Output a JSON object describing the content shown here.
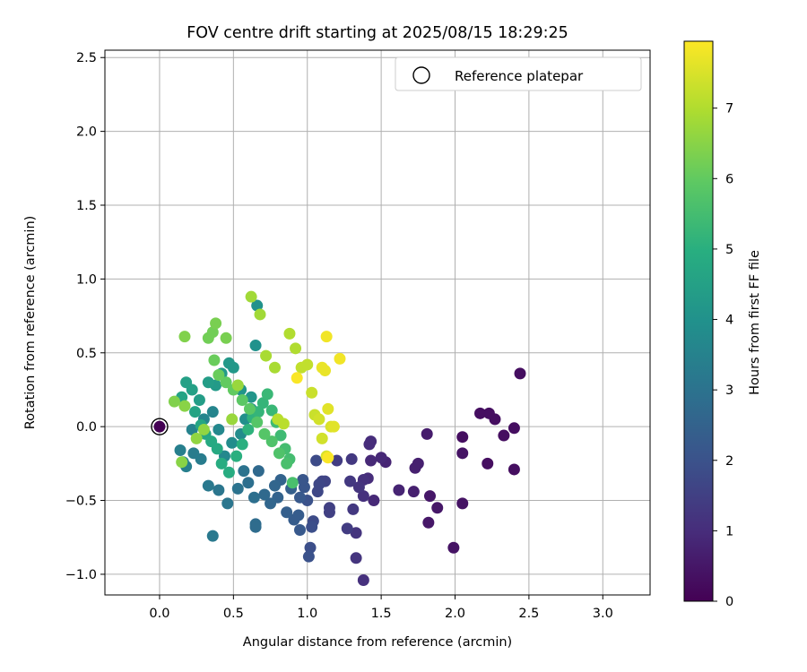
{
  "chart_data": {
    "type": "scatter",
    "title": "FOV centre drift starting at 2025/08/15 18:29:25",
    "xlabel": "Angular distance from reference (arcmin)",
    "ylabel": "Rotation from reference (arcmin)",
    "xlim": [
      -0.37,
      3.32
    ],
    "ylim": [
      -1.14,
      2.55
    ],
    "x_ticks": [
      0.0,
      0.5,
      1.0,
      1.5,
      2.0,
      2.5,
      3.0
    ],
    "x_tick_labels": [
      "0.0",
      "0.5",
      "1.0",
      "1.5",
      "2.0",
      "2.5",
      "3.0"
    ],
    "y_ticks": [
      -1.0,
      -0.5,
      0.0,
      0.5,
      1.0,
      1.5,
      2.0,
      2.5
    ],
    "y_tick_labels": [
      "−1.0",
      "−0.5",
      "0.0",
      "0.5",
      "1.0",
      "1.5",
      "2.0",
      "2.5"
    ],
    "grid": true,
    "legend": {
      "placement": "top-right",
      "entries": [
        "Reference platepar"
      ]
    },
    "colormap": "viridis",
    "colorbar": {
      "label": "Hours from first FF file",
      "range": [
        0,
        7.95
      ],
      "ticks": [
        0,
        1,
        2,
        3,
        4,
        5,
        6,
        7
      ],
      "tick_labels": [
        "0",
        "1",
        "2",
        "3",
        "4",
        "5",
        "6",
        "7"
      ]
    },
    "reference_point": {
      "x": 0.0,
      "y": 0.0,
      "hours": 0.0
    },
    "series": [
      {
        "points": [
          [
            2.44,
            0.36,
            0.3
          ],
          [
            2.4,
            -0.01,
            0.3
          ],
          [
            2.4,
            -0.29,
            0.3
          ],
          [
            2.33,
            -0.06,
            0.3
          ],
          [
            2.27,
            0.05,
            0.3
          ],
          [
            2.23,
            0.09,
            0.3
          ],
          [
            2.17,
            0.09,
            0.3
          ],
          [
            2.22,
            -0.25,
            0.3
          ],
          [
            2.05,
            -0.07,
            0.3
          ],
          [
            2.05,
            -0.18,
            0.4
          ],
          [
            2.05,
            -0.52,
            0.4
          ],
          [
            1.99,
            -0.82,
            0.4
          ],
          [
            1.88,
            -0.55,
            0.5
          ],
          [
            1.83,
            -0.47,
            0.5
          ],
          [
            1.82,
            -0.65,
            0.5
          ],
          [
            1.81,
            -0.05,
            0.6
          ],
          [
            1.75,
            -0.25,
            0.7
          ],
          [
            1.73,
            -0.28,
            0.7
          ],
          [
            1.72,
            -0.44,
            0.7
          ],
          [
            1.62,
            -0.43,
            0.8
          ],
          [
            1.53,
            -0.24,
            0.8
          ],
          [
            1.5,
            -0.21,
            0.9
          ],
          [
            1.45,
            -0.5,
            0.9
          ],
          [
            1.43,
            -0.23,
            0.9
          ],
          [
            1.43,
            -0.1,
            1.0
          ],
          [
            1.42,
            -0.12,
            1.0
          ],
          [
            1.41,
            -0.35,
            1.0
          ],
          [
            1.38,
            -0.36,
            1.1
          ],
          [
            1.38,
            -0.47,
            1.1
          ],
          [
            1.38,
            -1.04,
            1.1
          ],
          [
            1.35,
            -0.41,
            1.2
          ],
          [
            1.33,
            -0.72,
            1.2
          ],
          [
            1.33,
            -0.89,
            1.2
          ],
          [
            1.31,
            -0.56,
            1.3
          ],
          [
            1.3,
            -0.22,
            1.3
          ],
          [
            1.29,
            -0.37,
            1.3
          ],
          [
            1.27,
            -0.69,
            1.4
          ],
          [
            1.2,
            -0.23,
            1.4
          ],
          [
            1.15,
            -0.55,
            1.5
          ],
          [
            1.15,
            -0.58,
            1.5
          ],
          [
            1.12,
            -0.37,
            1.6
          ],
          [
            1.1,
            -0.37,
            1.6
          ],
          [
            1.08,
            -0.39,
            1.7
          ],
          [
            1.07,
            -0.44,
            1.7
          ],
          [
            1.06,
            -0.23,
            1.8
          ],
          [
            1.04,
            -0.64,
            1.8
          ],
          [
            1.03,
            -0.68,
            1.9
          ],
          [
            1.02,
            -0.82,
            1.9
          ],
          [
            1.01,
            -0.88,
            2.0
          ],
          [
            1.0,
            -0.5,
            2.0
          ],
          [
            0.98,
            -0.41,
            2.1
          ],
          [
            0.97,
            -0.36,
            2.1
          ],
          [
            0.95,
            -0.7,
            2.2
          ],
          [
            0.95,
            -0.48,
            2.2
          ],
          [
            0.94,
            -0.6,
            2.3
          ],
          [
            0.91,
            -0.63,
            2.3
          ],
          [
            0.89,
            -0.42,
            2.4
          ],
          [
            0.86,
            -0.58,
            2.4
          ],
          [
            0.82,
            -0.36,
            2.5
          ],
          [
            0.8,
            -0.48,
            2.5
          ],
          [
            0.78,
            -0.4,
            2.6
          ],
          [
            0.75,
            -0.52,
            2.6
          ],
          [
            0.71,
            -0.46,
            2.7
          ],
          [
            0.67,
            -0.3,
            2.7
          ],
          [
            0.65,
            -0.66,
            2.8
          ],
          [
            0.65,
            -0.68,
            2.8
          ],
          [
            0.64,
            -0.48,
            2.9
          ],
          [
            0.6,
            -0.38,
            2.9
          ],
          [
            0.57,
            -0.3,
            3.0
          ],
          [
            0.53,
            -0.42,
            3.0
          ],
          [
            0.46,
            -0.52,
            3.1
          ],
          [
            0.4,
            -0.43,
            3.1
          ],
          [
            0.36,
            -0.74,
            3.2
          ],
          [
            0.33,
            -0.4,
            3.2
          ],
          [
            0.28,
            -0.22,
            3.3
          ],
          [
            0.23,
            -0.18,
            3.3
          ],
          [
            0.18,
            -0.27,
            3.4
          ],
          [
            0.14,
            -0.16,
            3.4
          ],
          [
            0.16,
            -0.24,
            3.5
          ],
          [
            0.22,
            -0.02,
            3.5
          ],
          [
            0.3,
            0.05,
            3.6
          ],
          [
            0.36,
            0.1,
            3.6
          ],
          [
            0.4,
            -0.02,
            3.7
          ],
          [
            0.44,
            -0.2,
            3.7
          ],
          [
            0.49,
            -0.11,
            3.8
          ],
          [
            0.55,
            -0.05,
            3.8
          ],
          [
            0.58,
            0.05,
            3.9
          ],
          [
            0.62,
            0.12,
            3.9
          ],
          [
            0.65,
            0.55,
            4.0
          ],
          [
            0.66,
            0.82,
            4.0
          ],
          [
            0.62,
            0.2,
            4.1
          ],
          [
            0.55,
            0.25,
            4.1
          ],
          [
            0.5,
            0.4,
            4.2
          ],
          [
            0.47,
            0.43,
            4.2
          ],
          [
            0.42,
            0.36,
            4.3
          ],
          [
            0.38,
            0.28,
            4.3
          ],
          [
            0.33,
            0.3,
            4.4
          ],
          [
            0.27,
            0.18,
            4.4
          ],
          [
            0.22,
            0.25,
            4.5
          ],
          [
            0.18,
            0.3,
            4.5
          ],
          [
            0.15,
            0.2,
            4.6
          ],
          [
            0.24,
            0.1,
            4.6
          ],
          [
            0.28,
            0.01,
            4.7
          ],
          [
            0.31,
            -0.05,
            4.7
          ],
          [
            0.35,
            -0.1,
            4.8
          ],
          [
            0.39,
            -0.15,
            4.8
          ],
          [
            0.42,
            -0.25,
            4.9
          ],
          [
            0.47,
            -0.31,
            4.9
          ],
          [
            0.52,
            -0.2,
            5.0
          ],
          [
            0.56,
            -0.12,
            5.0
          ],
          [
            0.6,
            -0.02,
            5.1
          ],
          [
            0.63,
            0.06,
            5.1
          ],
          [
            0.67,
            0.1,
            5.2
          ],
          [
            0.7,
            0.16,
            5.2
          ],
          [
            0.73,
            0.22,
            5.3
          ],
          [
            0.76,
            0.11,
            5.3
          ],
          [
            0.79,
            0.03,
            5.4
          ],
          [
            0.82,
            -0.06,
            5.4
          ],
          [
            0.85,
            -0.15,
            5.5
          ],
          [
            0.88,
            -0.22,
            5.5
          ],
          [
            0.9,
            -0.38,
            5.6
          ],
          [
            0.86,
            -0.25,
            5.6
          ],
          [
            0.81,
            -0.18,
            5.7
          ],
          [
            0.76,
            -0.1,
            5.7
          ],
          [
            0.71,
            -0.05,
            5.8
          ],
          [
            0.66,
            0.03,
            5.8
          ],
          [
            0.61,
            0.12,
            5.9
          ],
          [
            0.56,
            0.18,
            5.9
          ],
          [
            0.5,
            0.25,
            6.0
          ],
          [
            0.45,
            0.3,
            6.0
          ],
          [
            0.4,
            0.35,
            6.1
          ],
          [
            0.37,
            0.45,
            6.1
          ],
          [
            0.33,
            0.6,
            6.2
          ],
          [
            0.36,
            0.64,
            6.2
          ],
          [
            0.38,
            0.7,
            6.3
          ],
          [
            0.45,
            0.6,
            6.3
          ],
          [
            0.17,
            0.61,
            6.4
          ],
          [
            0.1,
            0.17,
            6.4
          ],
          [
            0.17,
            0.14,
            6.5
          ],
          [
            0.15,
            -0.24,
            6.5
          ],
          [
            0.25,
            -0.08,
            6.6
          ],
          [
            0.3,
            -0.02,
            6.6
          ],
          [
            0.49,
            0.05,
            6.7
          ],
          [
            0.53,
            0.28,
            6.7
          ],
          [
            0.62,
            0.88,
            6.8
          ],
          [
            0.68,
            0.76,
            6.8
          ],
          [
            0.72,
            0.48,
            6.9
          ],
          [
            0.78,
            0.4,
            6.9
          ],
          [
            0.88,
            0.63,
            7.0
          ],
          [
            0.92,
            0.53,
            7.0
          ],
          [
            0.8,
            0.05,
            7.1
          ],
          [
            0.84,
            0.02,
            7.1
          ],
          [
            0.96,
            0.4,
            7.2
          ],
          [
            1.0,
            0.42,
            7.2
          ],
          [
            1.03,
            0.23,
            7.3
          ],
          [
            1.05,
            0.08,
            7.3
          ],
          [
            1.08,
            0.05,
            7.4
          ],
          [
            1.1,
            -0.08,
            7.4
          ],
          [
            1.13,
            -0.2,
            7.5
          ],
          [
            1.16,
            0.0,
            7.5
          ],
          [
            1.18,
            0.0,
            7.6
          ],
          [
            1.14,
            0.12,
            7.6
          ],
          [
            1.12,
            0.38,
            7.7
          ],
          [
            1.1,
            0.4,
            7.7
          ],
          [
            1.13,
            0.61,
            7.8
          ],
          [
            1.22,
            0.46,
            7.8
          ],
          [
            1.14,
            -0.21,
            7.9
          ],
          [
            0.93,
            0.33,
            7.9
          ]
        ]
      }
    ]
  }
}
